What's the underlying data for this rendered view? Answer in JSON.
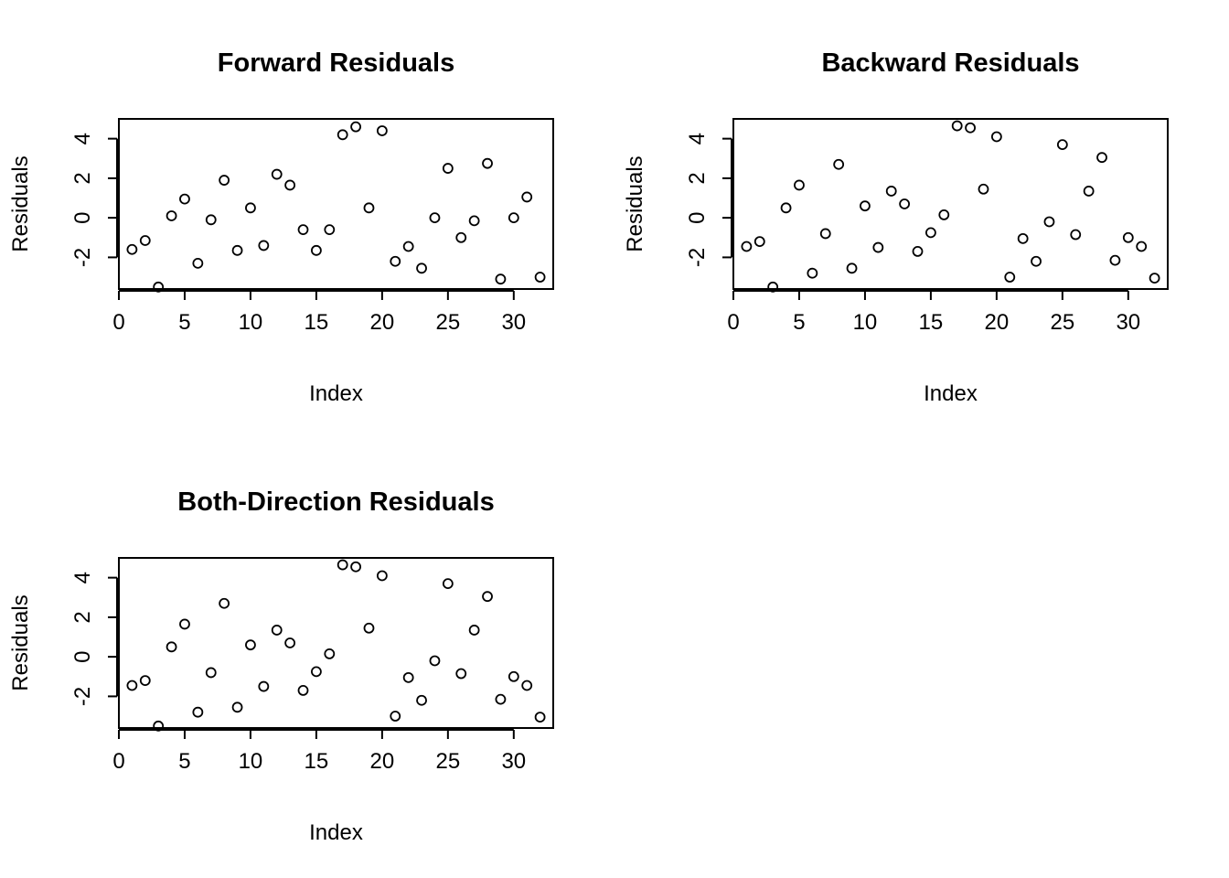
{
  "chart_data": [
    {
      "type": "scatter",
      "title": "Forward Residuals",
      "xlabel": "Index",
      "ylabel": "Residuals",
      "xlim": [
        0,
        33
      ],
      "ylim": [
        -3.6,
        5.0
      ],
      "xticks": [
        "0",
        "5",
        "10",
        "15",
        "20",
        "25",
        "30"
      ],
      "yticks": [
        "-2",
        "0",
        "2",
        "4"
      ],
      "x": [
        1,
        2,
        3,
        4,
        5,
        6,
        7,
        8,
        9,
        10,
        11,
        12,
        13,
        14,
        15,
        16,
        17,
        18,
        19,
        20,
        21,
        22,
        23,
        24,
        25,
        26,
        27,
        28,
        29,
        30,
        31,
        32
      ],
      "y": [
        -1.6,
        -1.15,
        -3.5,
        0.1,
        0.95,
        -2.3,
        -0.1,
        1.9,
        -1.65,
        0.5,
        -1.4,
        2.2,
        1.65,
        -0.6,
        -1.65,
        -0.6,
        4.2,
        4.6,
        0.5,
        4.4,
        -2.2,
        -1.45,
        -2.55,
        0.0,
        2.5,
        -1.0,
        -0.15,
        2.75,
        -3.1,
        0.0,
        1.05,
        -3.0
      ]
    },
    {
      "type": "scatter",
      "title": "Backward Residuals",
      "xlabel": "Index",
      "ylabel": "Residuals",
      "xlim": [
        0,
        33
      ],
      "ylim": [
        -3.6,
        5.0
      ],
      "xticks": [
        "0",
        "5",
        "10",
        "15",
        "20",
        "25",
        "30"
      ],
      "yticks": [
        "-2",
        "0",
        "2",
        "4"
      ],
      "x": [
        1,
        2,
        3,
        4,
        5,
        6,
        7,
        8,
        9,
        10,
        11,
        12,
        13,
        14,
        15,
        16,
        17,
        18,
        19,
        20,
        21,
        22,
        23,
        24,
        25,
        26,
        27,
        28,
        29,
        30,
        31,
        32
      ],
      "y": [
        -1.45,
        -1.2,
        -3.5,
        0.5,
        1.65,
        -2.8,
        -0.8,
        2.7,
        -2.55,
        0.6,
        -1.5,
        1.35,
        0.7,
        -1.7,
        -0.75,
        0.15,
        4.65,
        4.55,
        1.45,
        4.1,
        -3.0,
        -1.05,
        -2.2,
        -0.2,
        3.7,
        -0.85,
        1.35,
        3.05,
        -2.15,
        -1.0,
        -1.45,
        -3.05
      ]
    },
    {
      "type": "scatter",
      "title": "Both-Direction Residuals",
      "xlabel": "Index",
      "ylabel": "Residuals",
      "xlim": [
        0,
        33
      ],
      "ylim": [
        -3.6,
        5.0
      ],
      "xticks": [
        "0",
        "5",
        "10",
        "15",
        "20",
        "25",
        "30"
      ],
      "yticks": [
        "-2",
        "0",
        "2",
        "4"
      ],
      "x": [
        1,
        2,
        3,
        4,
        5,
        6,
        7,
        8,
        9,
        10,
        11,
        12,
        13,
        14,
        15,
        16,
        17,
        18,
        19,
        20,
        21,
        22,
        23,
        24,
        25,
        26,
        27,
        28,
        29,
        30,
        31,
        32
      ],
      "y": [
        -1.45,
        -1.2,
        -3.5,
        0.5,
        1.65,
        -2.8,
        -0.8,
        2.7,
        -2.55,
        0.6,
        -1.5,
        1.35,
        0.7,
        -1.7,
        -0.75,
        0.15,
        4.65,
        4.55,
        1.45,
        4.1,
        -3.0,
        -1.05,
        -2.2,
        -0.2,
        3.7,
        -0.85,
        1.35,
        3.05,
        -2.15,
        -1.0,
        -1.45,
        -3.05
      ]
    }
  ]
}
